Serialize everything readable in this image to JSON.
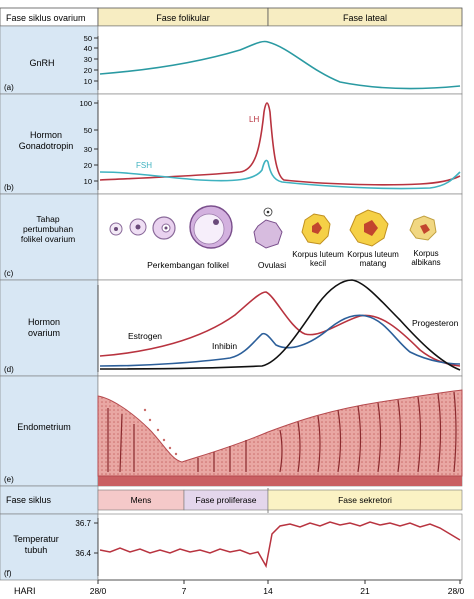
{
  "header": {
    "phase_label": "Fase siklus ovarium",
    "follicular": "Fase folikular",
    "luteal": "Fase lateal"
  },
  "panels": {
    "gnrh": {
      "letter": "(a)",
      "label": "GnRH",
      "ticks": [
        "50",
        "40",
        "30",
        "20",
        "10"
      ]
    },
    "gonadotropin": {
      "letter": "(b)",
      "label_line1": "Hormon",
      "label_line2": "Gonadotropin",
      "ticks": [
        "100",
        "50",
        "30",
        "20",
        "10"
      ],
      "lh_label": "LH",
      "fsh_label": "FSH"
    },
    "follicle": {
      "letter": "(c)",
      "label_line1": "Tahap",
      "label_line2": "pertumbuhan",
      "label_line3": "folikel ovarium",
      "development": "Perkembangan folikel",
      "ovulation": "Ovulasi",
      "cl_young_1": "Korpus luteum",
      "cl_young_2": "kecil",
      "cl_mature_1": "Korpus luteum",
      "cl_mature_2": "matang",
      "albicans_1": "Korpus",
      "albicans_2": "albikans"
    },
    "ovarian": {
      "letter": "(d)",
      "label_line1": "Hormon",
      "label_line2": "ovarium",
      "estrogen": "Estrogen",
      "inhibin": "Inhibin",
      "progesteron": "Progesteron"
    },
    "endometrium": {
      "letter": "(e)",
      "label": "Endometrium"
    },
    "cycle": {
      "label": "Fase siklus",
      "mens": "Mens",
      "proliferative": "Fase proliferase",
      "secretory": "Fase sekretori"
    },
    "temperature": {
      "letter": "(f)",
      "label_line1": "Temperatur",
      "label_line2": "tubuh",
      "ticks": [
        "36.7",
        "36.4"
      ]
    }
  },
  "days": {
    "label": "HARI",
    "ticks": [
      "28/0",
      "7",
      "14",
      "21",
      "28/0"
    ]
  },
  "colors": {
    "gnrh": "#2a9aa2",
    "lh": "#b8333f",
    "fsh": "#3fb2c0",
    "estrogen": "#b8333f",
    "inhibin": "#2c5f9a",
    "progesteron": "#111111",
    "temperature": "#b8333f",
    "mens": "#f5c9c9",
    "proliferative": "#e4d6ec",
    "secretory": "#fbf2c4",
    "header": "#f7edc2"
  },
  "chart_data": [
    {
      "type": "line",
      "series": [
        {
          "name": "GnRH",
          "x": [
            0,
            7,
            14,
            21,
            28
          ],
          "values": [
            18,
            26,
            46,
            15,
            13
          ]
        }
      ],
      "ylim": [
        10,
        50
      ]
    },
    {
      "type": "line",
      "series": [
        {
          "name": "LH",
          "x": [
            0,
            7,
            13,
            14,
            15,
            21,
            28
          ],
          "values": [
            16,
            17,
            27,
            100,
            18,
            12,
            14
          ]
        },
        {
          "name": "FSH",
          "x": [
            0,
            7,
            13,
            14,
            15,
            21,
            28
          ],
          "values": [
            15,
            13,
            14,
            25,
            14,
            11,
            15
          ]
        }
      ],
      "ylim": [
        10,
        100
      ]
    },
    {
      "type": "line",
      "series": [
        {
          "name": "Estrogen"
        },
        {
          "name": "Inhibin"
        },
        {
          "name": "Progesteron"
        }
      ]
    },
    {
      "type": "line",
      "series": [
        {
          "values": [
            36.4,
            36.3,
            36.7,
            36.6
          ]
        }
      ],
      "ylim": [
        36.4,
        36.7
      ]
    }
  ]
}
